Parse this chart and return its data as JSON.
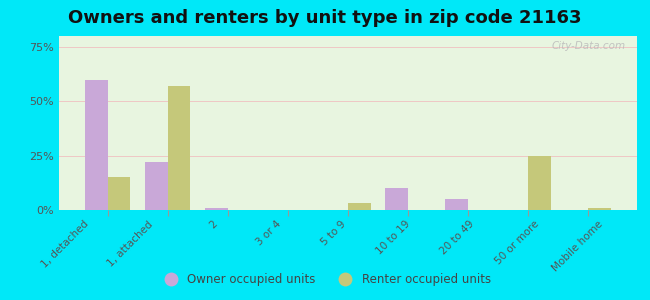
{
  "title": "Owners and renters by unit type in zip code 21163",
  "categories": [
    "1, detached",
    "1, attached",
    "2",
    "3 or 4",
    "5 to 9",
    "10 to 19",
    "20 to 49",
    "50 or more",
    "Mobile home"
  ],
  "owner_values": [
    60,
    22,
    1,
    0,
    0,
    10,
    5,
    0,
    0
  ],
  "renter_values": [
    15,
    57,
    0,
    0,
    3,
    0,
    0,
    25,
    1
  ],
  "owner_color": "#c9a8d8",
  "renter_color": "#c5c87a",
  "background_color": "#00e8f8",
  "plot_bg_color": "#e8f5e0",
  "ylabel_ticks": [
    "0%",
    "25%",
    "50%",
    "75%"
  ],
  "ytick_values": [
    0,
    25,
    50,
    75
  ],
  "ylim": [
    0,
    80
  ],
  "legend_owner": "Owner occupied units",
  "legend_renter": "Renter occupied units",
  "watermark": "City-Data.com",
  "title_fontsize": 13,
  "bar_width": 0.38
}
